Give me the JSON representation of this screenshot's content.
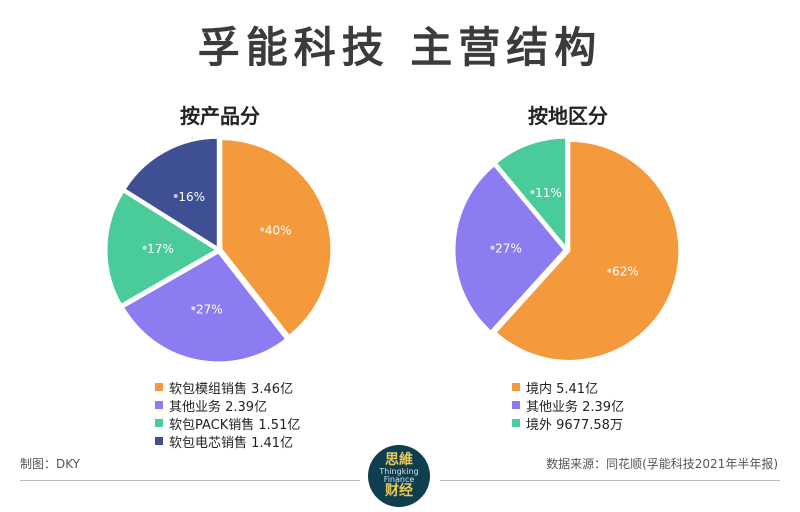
{
  "title": "孚能科技  主营结构",
  "footer": {
    "author": "制图：DKY",
    "source": "数据来源：同花顺(孚能科技2021年半年报)"
  },
  "logo": {
    "line1": "思維",
    "line2": "Thingking",
    "line3": "Finance",
    "line4": "财经"
  },
  "chart_data": [
    {
      "type": "pie",
      "title": "按产品分",
      "slices": [
        {
          "label": "软包模组销售 3.46亿",
          "value": 3.46,
          "pct": "40%",
          "color": "#f59a3c"
        },
        {
          "label": "其他业务 2.39亿",
          "value": 2.39,
          "pct": "27%",
          "color": "#8c7cf2"
        },
        {
          "label": "软包PACK销售 1.51亿",
          "value": 1.51,
          "pct": "17%",
          "color": "#49cc99"
        },
        {
          "label": "软包电芯销售 1.41亿",
          "value": 1.41,
          "pct": "16%",
          "color": "#3e4f94"
        }
      ]
    },
    {
      "type": "pie",
      "title": "按地区分",
      "slices": [
        {
          "label": "境内 5.41亿",
          "value": 5.41,
          "pct": "62%",
          "color": "#f59a3c"
        },
        {
          "label": "其他业务 2.39亿",
          "value": 2.39,
          "pct": "27%",
          "color": "#8c7cf2"
        },
        {
          "label": "境外 9677.58万",
          "value": 0.967758,
          "pct": "11%",
          "color": "#49cc99"
        }
      ]
    }
  ]
}
